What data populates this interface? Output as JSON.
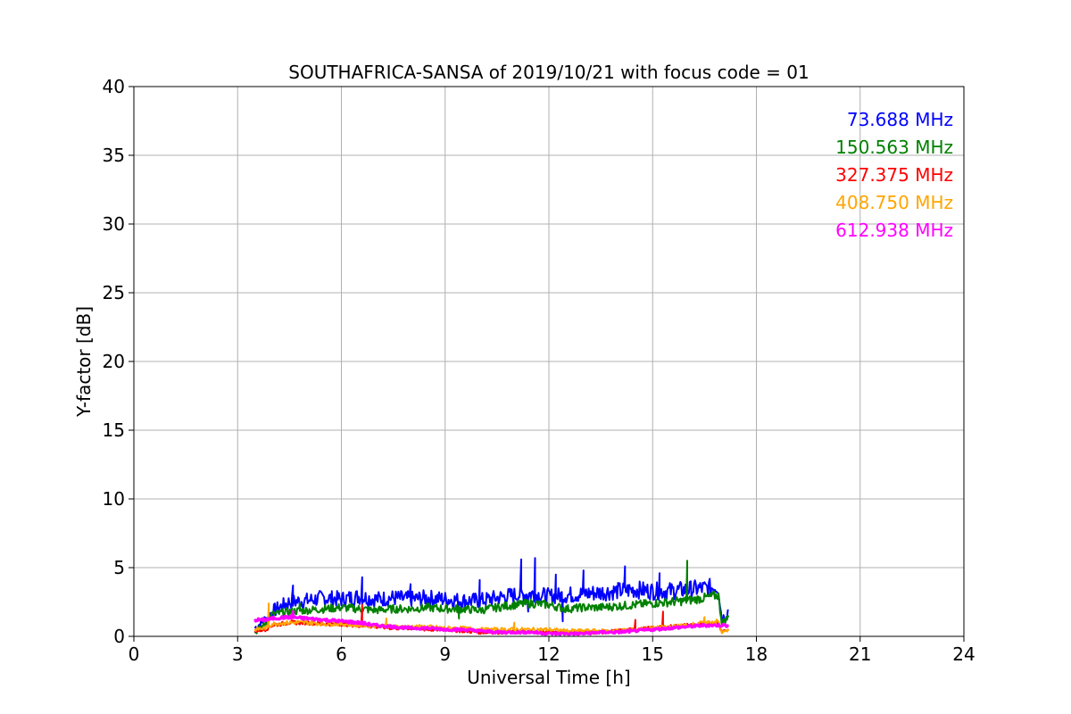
{
  "chart_data": {
    "type": "line",
    "title": "SOUTHAFRICA-SANSA of 2019/10/21 with focus code = 01",
    "xlabel": "Universal Time [h]",
    "ylabel": "Y-factor [dB]",
    "xlim": [
      0,
      24
    ],
    "ylim": [
      0,
      40
    ],
    "xticks": [
      0,
      3,
      6,
      9,
      12,
      15,
      18,
      21,
      24
    ],
    "yticks": [
      0,
      5,
      10,
      15,
      20,
      25,
      30,
      35,
      40
    ],
    "xtick_labels": [
      "0",
      "3",
      "6",
      "9",
      "12",
      "15",
      "18",
      "21",
      "24"
    ],
    "ytick_labels": [
      "0",
      "5",
      "10",
      "15",
      "20",
      "25",
      "30",
      "35",
      "40"
    ],
    "grid": true,
    "legend_placement": "top-right",
    "series": [
      {
        "name": "73.688 MHz",
        "color": "#0000ff",
        "x": [
          3.5,
          3.8,
          4.0,
          4.5,
          5.0,
          5.5,
          6.0,
          6.5,
          7.0,
          7.5,
          8.0,
          8.5,
          9.0,
          9.5,
          10.0,
          10.5,
          11.0,
          11.5,
          12.0,
          12.5,
          13.0,
          13.5,
          14.0,
          14.5,
          15.0,
          15.5,
          16.0,
          16.5,
          16.9,
          17.0,
          17.2
        ],
        "y": [
          0.6,
          1.2,
          1.8,
          2.5,
          2.6,
          2.8,
          2.7,
          2.9,
          2.7,
          2.8,
          2.7,
          2.8,
          2.7,
          2.6,
          2.6,
          2.8,
          3.0,
          3.1,
          2.9,
          3.0,
          3.1,
          3.2,
          3.3,
          3.4,
          3.3,
          3.3,
          3.4,
          3.5,
          3.6,
          1.2,
          1.9
        ],
        "spikes": [
          [
            4.6,
            3.7
          ],
          [
            6.6,
            4.3
          ],
          [
            8.0,
            3.8
          ],
          [
            10.0,
            4.1
          ],
          [
            11.2,
            5.6
          ],
          [
            11.6,
            5.7
          ],
          [
            12.2,
            4.5
          ],
          [
            13.0,
            4.8
          ],
          [
            14.2,
            5.1
          ],
          [
            15.2,
            4.6
          ],
          [
            11.4,
            1.8
          ],
          [
            12.4,
            1.1
          ]
        ]
      },
      {
        "name": "150.563 MHz",
        "color": "#008000",
        "x": [
          3.5,
          3.8,
          4.0,
          4.5,
          5.0,
          5.5,
          6.0,
          6.5,
          7.0,
          7.5,
          8.0,
          8.5,
          9.0,
          9.5,
          10.0,
          10.5,
          11.0,
          11.5,
          12.0,
          12.5,
          13.0,
          13.5,
          14.0,
          14.5,
          15.0,
          15.5,
          16.0,
          16.5,
          16.9,
          17.0,
          17.2
        ],
        "y": [
          0.3,
          0.9,
          1.6,
          1.8,
          1.9,
          2.0,
          2.1,
          2.0,
          1.9,
          2.0,
          2.0,
          2.1,
          2.0,
          2.0,
          1.9,
          2.1,
          2.3,
          2.4,
          2.3,
          2.0,
          2.1,
          2.1,
          2.2,
          2.3,
          2.4,
          2.5,
          2.6,
          2.8,
          3.0,
          1.0,
          1.4
        ],
        "spikes": [
          [
            16.0,
            5.5
          ],
          [
            4.8,
            2.4
          ],
          [
            9.4,
            1.3
          ]
        ]
      },
      {
        "name": "327.375 MHz",
        "color": "#ff0000",
        "x": [
          3.5,
          3.8,
          4.0,
          4.5,
          5.0,
          5.5,
          6.0,
          6.5,
          7.0,
          7.5,
          8.0,
          8.5,
          9.0,
          9.5,
          10.0,
          10.5,
          11.0,
          11.5,
          12.0,
          12.5,
          13.0,
          13.5,
          14.0,
          14.5,
          15.0,
          15.5,
          16.0,
          16.5,
          16.9,
          17.0,
          17.2
        ],
        "y": [
          0.4,
          0.5,
          0.8,
          1.0,
          1.0,
          0.9,
          0.9,
          0.8,
          0.7,
          0.6,
          0.6,
          0.5,
          0.5,
          0.4,
          0.3,
          0.3,
          0.3,
          0.3,
          0.3,
          0.3,
          0.3,
          0.3,
          0.4,
          0.5,
          0.6,
          0.7,
          0.8,
          0.9,
          1.0,
          0.4,
          0.5
        ],
        "spikes": [
          [
            15.3,
            1.8
          ],
          [
            6.6,
            2.3
          ],
          [
            14.5,
            1.2
          ]
        ]
      },
      {
        "name": "408.750 MHz",
        "color": "#ffa500",
        "x": [
          3.5,
          3.8,
          4.0,
          4.5,
          5.0,
          5.5,
          6.0,
          6.5,
          7.0,
          7.5,
          8.0,
          8.5,
          9.0,
          9.5,
          10.0,
          10.5,
          11.0,
          11.5,
          12.0,
          12.5,
          13.0,
          13.5,
          14.0,
          14.5,
          15.0,
          15.5,
          16.0,
          16.5,
          16.9,
          17.0,
          17.2
        ],
        "y": [
          0.5,
          0.6,
          0.9,
          1.0,
          1.0,
          0.9,
          0.9,
          0.8,
          0.8,
          0.7,
          0.7,
          0.7,
          0.6,
          0.6,
          0.5,
          0.5,
          0.5,
          0.5,
          0.5,
          0.4,
          0.4,
          0.4,
          0.4,
          0.5,
          0.6,
          0.7,
          0.8,
          1.0,
          1.1,
          0.3,
          0.4
        ],
        "spikes": [
          [
            3.9,
            2.4
          ],
          [
            7.3,
            1.3
          ],
          [
            11.0,
            1.0
          ],
          [
            16.5,
            1.4
          ]
        ]
      },
      {
        "name": "612.938 MHz",
        "color": "#ff00ff",
        "x": [
          3.5,
          3.8,
          4.0,
          4.5,
          5.0,
          5.5,
          6.0,
          6.5,
          7.0,
          7.5,
          8.0,
          8.5,
          9.0,
          9.5,
          10.0,
          10.5,
          11.0,
          11.5,
          12.0,
          12.5,
          13.0,
          13.5,
          14.0,
          14.5,
          15.0,
          15.5,
          16.0,
          16.5,
          16.9,
          17.0,
          17.2
        ],
        "y": [
          1.2,
          1.2,
          1.3,
          1.4,
          1.3,
          1.2,
          1.1,
          1.0,
          0.8,
          0.7,
          0.6,
          0.6,
          0.5,
          0.5,
          0.4,
          0.3,
          0.3,
          0.3,
          0.2,
          0.2,
          0.2,
          0.3,
          0.3,
          0.4,
          0.5,
          0.6,
          0.7,
          0.8,
          0.8,
          0.8,
          0.8
        ],
        "spikes": [
          [
            4.6,
            1.8
          ]
        ]
      }
    ]
  }
}
